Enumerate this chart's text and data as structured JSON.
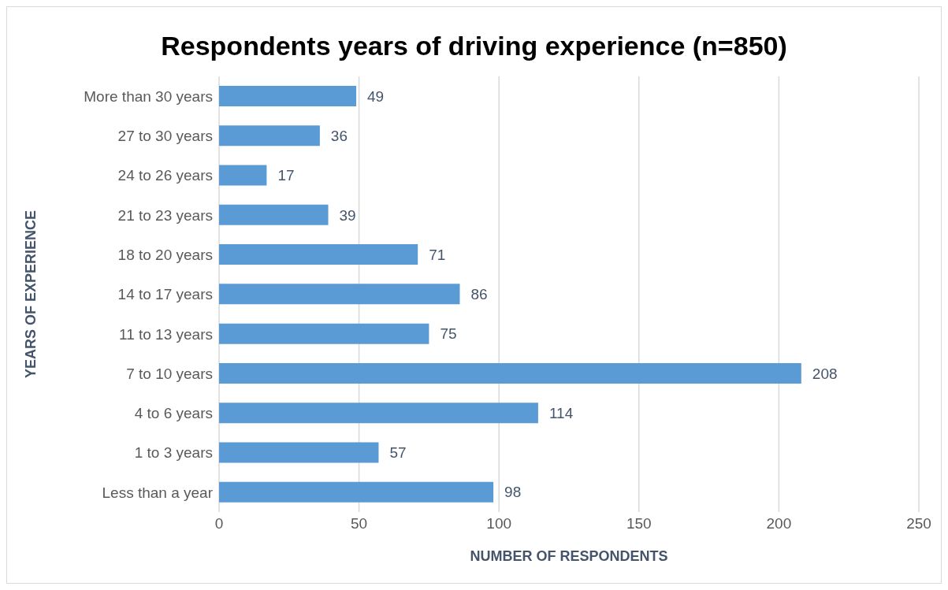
{
  "chart_data": {
    "type": "bar",
    "orientation": "horizontal",
    "title": "Respondents years of driving experience (n=850)",
    "xlabel": "NUMBER OF RESPONDENTS",
    "ylabel": "YEARS OF EXPERIENCE",
    "categories": [
      "More than 30 years",
      "27 to 30 years",
      "24 to 26 years",
      "21 to 23 years",
      "18 to 20 years",
      "14 to 17 years",
      "11 to 13 years",
      "7 to 10 years",
      "4 to 6 years",
      "1 to 3 years",
      "Less than a year"
    ],
    "values": [
      49,
      36,
      17,
      39,
      71,
      86,
      75,
      208,
      114,
      57,
      98
    ],
    "color": "#5b9bd5",
    "xlim": [
      0,
      250
    ],
    "xticks": [
      0,
      50,
      100,
      150,
      200,
      250
    ],
    "grid": "x",
    "data_labels": true
  }
}
